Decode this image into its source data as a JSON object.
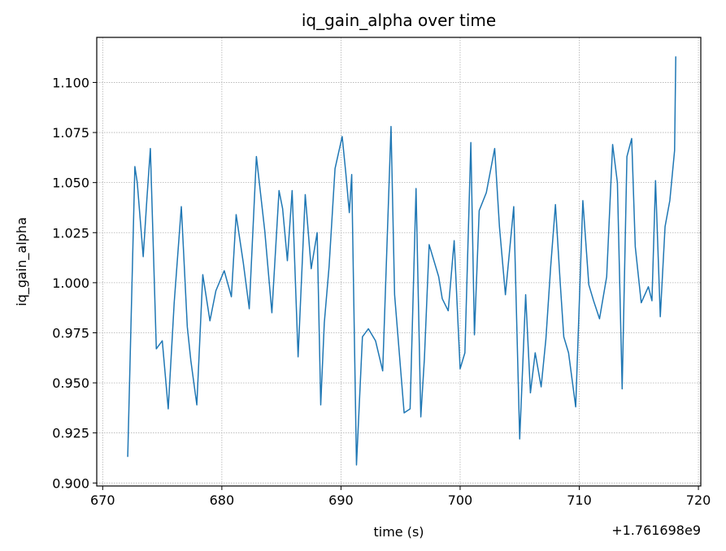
{
  "chart_data": {
    "type": "line",
    "title": "iq_gain_alpha over time",
    "xlabel": "time (s)",
    "ylabel": "iq_gain_alpha",
    "x_offset_label": "+1.761698e9",
    "xlim": [
      669.5,
      720.2
    ],
    "ylim": [
      0.8985,
      1.1225
    ],
    "x_ticks": [
      670,
      680,
      690,
      700,
      710,
      720
    ],
    "x_tick_labels": [
      "670",
      "680",
      "690",
      "700",
      "710",
      "720"
    ],
    "y_ticks": [
      0.9,
      0.925,
      0.95,
      0.975,
      1.0,
      1.025,
      1.05,
      1.075,
      1.1
    ],
    "y_tick_labels": [
      "0.900",
      "0.925",
      "0.950",
      "0.975",
      "1.000",
      "1.025",
      "1.050",
      "1.075",
      "1.100"
    ],
    "grid": true,
    "line_color": "#1f77b4",
    "series": [
      {
        "x": [
          672.1,
          672.7,
          672.9,
          673.4,
          673.7,
          674.0,
          674.5,
          675.0,
          675.5,
          676.0,
          676.6,
          677.1,
          677.4,
          677.9,
          678.4,
          679.0,
          679.5,
          680.2,
          680.8,
          681.2,
          681.8,
          682.3,
          682.9,
          683.6,
          684.2,
          684.8,
          685.1,
          685.5,
          685.9,
          686.4,
          687.0,
          687.5,
          688.0,
          688.3,
          688.6,
          689.0,
          689.5,
          690.1,
          690.4,
          690.7,
          690.9,
          691.3,
          691.8,
          692.3,
          692.9,
          693.5,
          694.2,
          694.5,
          695.3,
          695.8,
          696.3,
          696.7,
          697.0,
          697.4,
          697.7,
          698.2,
          698.5,
          699.0,
          699.5,
          700.0,
          700.4,
          700.9,
          701.2,
          701.6,
          702.2,
          702.9,
          703.3,
          703.8,
          704.5,
          705.0,
          705.5,
          705.9,
          706.3,
          706.8,
          707.2,
          707.6,
          708.0,
          708.4,
          708.7,
          709.1,
          709.7,
          710.3,
          710.8,
          711.2,
          711.7,
          712.3,
          712.8,
          713.2,
          713.6,
          714.0,
          714.4,
          714.7,
          715.2,
          715.8,
          716.1,
          716.4,
          716.8,
          717.2,
          717.6,
          718.0,
          718.1
        ],
        "y": [
          0.913,
          1.058,
          1.05,
          1.013,
          1.041,
          1.067,
          0.967,
          0.971,
          0.937,
          0.99,
          1.038,
          0.978,
          0.961,
          0.939,
          1.004,
          0.981,
          0.996,
          1.006,
          0.993,
          1.034,
          1.01,
          0.987,
          1.063,
          1.026,
          0.985,
          1.046,
          1.037,
          1.011,
          1.046,
          0.963,
          1.044,
          1.007,
          1.025,
          0.939,
          0.98,
          1.008,
          1.057,
          1.073,
          1.055,
          1.035,
          1.054,
          0.909,
          0.973,
          0.977,
          0.971,
          0.956,
          1.078,
          0.994,
          0.935,
          0.937,
          1.047,
          0.933,
          0.962,
          1.019,
          1.013,
          1.003,
          0.992,
          0.986,
          1.021,
          0.957,
          0.965,
          1.07,
          0.974,
          1.036,
          1.045,
          1.067,
          1.028,
          0.994,
          1.038,
          0.922,
          0.994,
          0.945,
          0.965,
          0.948,
          0.972,
          1.008,
          1.039,
          1.0,
          0.973,
          0.965,
          0.938,
          1.041,
          0.999,
          0.991,
          0.982,
          1.003,
          1.069,
          1.05,
          0.947,
          1.063,
          1.072,
          1.018,
          0.99,
          0.998,
          0.991,
          1.051,
          0.983,
          1.028,
          1.041,
          1.066,
          1.113
        ]
      }
    ]
  }
}
